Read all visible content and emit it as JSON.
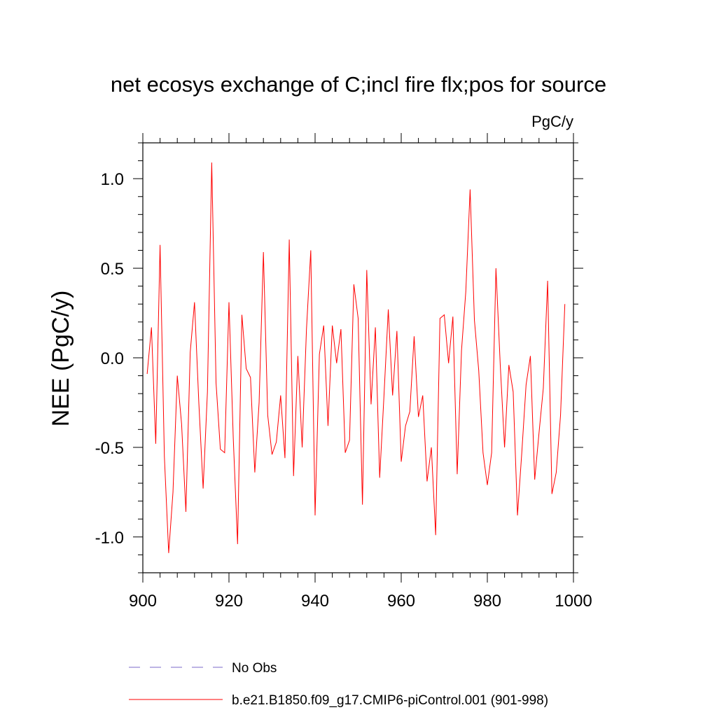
{
  "chart_data": {
    "type": "line",
    "title": "net ecosys exchange of C;incl fire flx;pos for source",
    "units": "PgC/y",
    "ylabel": "NEE  (PgC/y)",
    "xlabel": "",
    "xlim": [
      900,
      1000
    ],
    "ylim": [
      -1.2,
      1.2
    ],
    "x_ticks": [
      900,
      920,
      940,
      960,
      980,
      1000
    ],
    "x_tick_labels": [
      "900",
      "920",
      "940",
      "960",
      "980",
      "1000"
    ],
    "y_ticks": [
      1.0,
      0.5,
      0.0,
      -0.5,
      -1.0
    ],
    "y_tick_labels": [
      "1.0",
      "0.5",
      "0.0",
      "-0.5",
      "-1.0"
    ],
    "grid": false,
    "legend_position": "bottom",
    "series": [
      {
        "name": "No Obs",
        "color": "#7b68c8",
        "style": "dashed",
        "x": [],
        "values": []
      },
      {
        "name": "b.e21.B1850.f09_g17.CMIP6-piControl.001 (901-998)",
        "color": "#ff0000",
        "style": "solid",
        "x": [
          901,
          902,
          903,
          904,
          905,
          906,
          907,
          908,
          909,
          910,
          911,
          912,
          913,
          914,
          915,
          916,
          917,
          918,
          919,
          920,
          921,
          922,
          923,
          924,
          925,
          926,
          927,
          928,
          929,
          930,
          931,
          932,
          933,
          934,
          935,
          936,
          937,
          938,
          939,
          940,
          941,
          942,
          943,
          944,
          945,
          946,
          947,
          948,
          949,
          950,
          951,
          952,
          953,
          954,
          955,
          956,
          957,
          958,
          959,
          960,
          961,
          962,
          963,
          964,
          965,
          966,
          967,
          968,
          969,
          970,
          971,
          972,
          973,
          974,
          975,
          976,
          977,
          978,
          979,
          980,
          981,
          982,
          983,
          984,
          985,
          986,
          987,
          988,
          989,
          990,
          991,
          992,
          993,
          994,
          995,
          996,
          997,
          998
        ],
        "values": [
          -0.09,
          0.17,
          -0.48,
          0.63,
          -0.55,
          -1.09,
          -0.75,
          -0.1,
          -0.37,
          -0.86,
          0.03,
          0.31,
          -0.25,
          -0.73,
          -0.19,
          1.09,
          -0.14,
          -0.51,
          -0.53,
          0.31,
          -0.45,
          -1.04,
          0.24,
          -0.06,
          -0.11,
          -0.64,
          -0.25,
          0.59,
          -0.32,
          -0.54,
          -0.47,
          -0.21,
          -0.56,
          0.66,
          -0.66,
          0.01,
          -0.5,
          0.16,
          0.6,
          -0.88,
          0.02,
          0.18,
          -0.38,
          0.18,
          -0.03,
          0.16,
          -0.53,
          -0.46,
          0.41,
          0.22,
          -0.82,
          0.49,
          -0.26,
          0.17,
          -0.67,
          -0.21,
          0.27,
          -0.21,
          0.15,
          -0.58,
          -0.38,
          -0.3,
          0.12,
          -0.33,
          -0.21,
          -0.69,
          -0.5,
          -0.99,
          0.22,
          0.24,
          -0.03,
          0.23,
          -0.65,
          0.04,
          0.37,
          0.94,
          0.21,
          -0.07,
          -0.53,
          -0.71,
          -0.53,
          0.5,
          -0.04,
          -0.5,
          -0.04,
          -0.19,
          -0.88,
          -0.53,
          -0.15,
          0.01,
          -0.68,
          -0.42,
          -0.17,
          0.43,
          -0.76,
          -0.64,
          -0.32,
          0.3
        ]
      }
    ]
  }
}
